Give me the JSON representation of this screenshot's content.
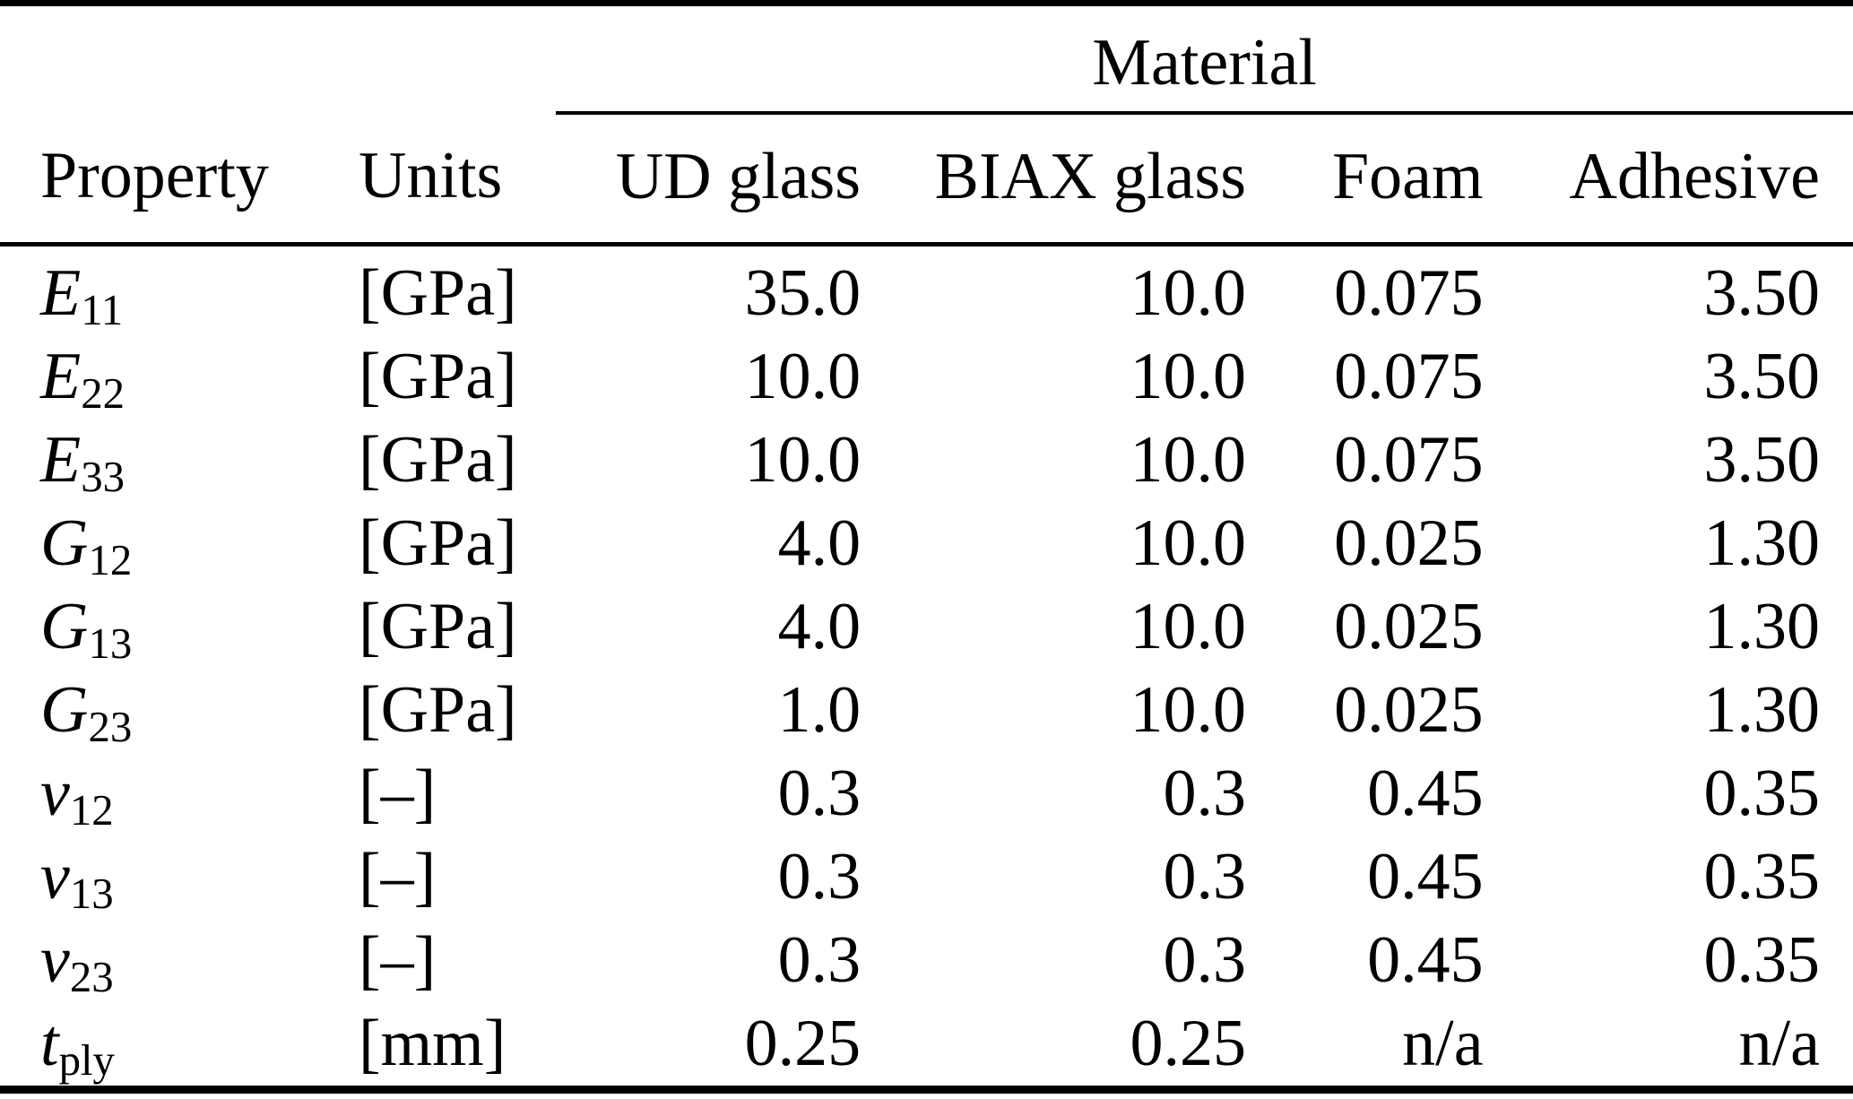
{
  "table": {
    "group_header": "Material",
    "columns": [
      {
        "label": "Property",
        "align": "left"
      },
      {
        "label": "Units",
        "align": "left"
      },
      {
        "label": "UD glass",
        "align": "right"
      },
      {
        "label": "BIAX glass",
        "align": "right"
      },
      {
        "label": "Foam",
        "align": "right"
      },
      {
        "label": "Adhesive",
        "align": "right"
      }
    ],
    "rows": [
      {
        "property": {
          "base": "E",
          "sub": "11"
        },
        "units": "[GPa]",
        "values": [
          "35.0",
          "10.0",
          "0.075",
          "3.50"
        ]
      },
      {
        "property": {
          "base": "E",
          "sub": "22"
        },
        "units": "[GPa]",
        "values": [
          "10.0",
          "10.0",
          "0.075",
          "3.50"
        ]
      },
      {
        "property": {
          "base": "E",
          "sub": "33"
        },
        "units": "[GPa]",
        "values": [
          "10.0",
          "10.0",
          "0.075",
          "3.50"
        ]
      },
      {
        "property": {
          "base": "G",
          "sub": "12"
        },
        "units": "[GPa]",
        "values": [
          "4.0",
          "10.0",
          "0.025",
          "1.30"
        ]
      },
      {
        "property": {
          "base": "G",
          "sub": "13"
        },
        "units": "[GPa]",
        "values": [
          "4.0",
          "10.0",
          "0.025",
          "1.30"
        ]
      },
      {
        "property": {
          "base": "G",
          "sub": "23"
        },
        "units": "[GPa]",
        "values": [
          "1.0",
          "10.0",
          "0.025",
          "1.30"
        ]
      },
      {
        "property": {
          "base": "ν",
          "sub": "12"
        },
        "units": "[–]",
        "values": [
          "0.3",
          "0.3",
          "0.45",
          "0.35"
        ]
      },
      {
        "property": {
          "base": "ν",
          "sub": "13"
        },
        "units": "[–]",
        "values": [
          "0.3",
          "0.3",
          "0.45",
          "0.35"
        ]
      },
      {
        "property": {
          "base": "ν",
          "sub": "23"
        },
        "units": "[–]",
        "values": [
          "0.3",
          "0.3",
          "0.45",
          "0.35"
        ]
      },
      {
        "property": {
          "base": "t",
          "sub": "ply"
        },
        "units": "[mm]",
        "values": [
          "0.25",
          "0.25",
          "n/a",
          "n/a"
        ]
      }
    ],
    "colors": {
      "text": "#000000",
      "background": "#ffffff",
      "rule": "#000000"
    }
  }
}
